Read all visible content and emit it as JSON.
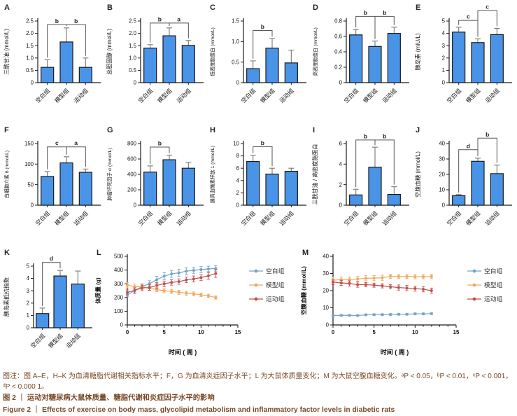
{
  "figure": {
    "caption_note": "图注：图 A–E，H–K 为血清糖脂代谢相关指标水平；F，G 为血清炎症因子水平；L 为大鼠体质量变化；M 为大鼠空腹血糖变化。ᵃP < 0.05，ᵇP < 0.01，ᶜP < 0.001，ᵈP < 0.000 1。",
    "caption_zh": "图 2 ｜ 运动对糖尿病大鼠体质量、糖脂代谢和炎症因子水平的影响",
    "caption_en": "Figure 2 ｜ Effects of exercise on body mass, glycolipid metabolism and inflammatory factor levels in diabetic rats",
    "caption_color": "#7a4a28"
  },
  "colors": {
    "bar_fill": "#4A94E8",
    "bar_stroke": "#1a1a1a",
    "error": "#777777",
    "bracket": "#555555",
    "blank": "#74A4C8",
    "model": "#F0A95F",
    "exercise": "#C0504D"
  },
  "groups": [
    "空白组",
    "模型组",
    "运动组"
  ],
  "chart_data": [
    {
      "panel": "A",
      "type": "bar",
      "ylabel": "三酰甘油 (mmol/L)",
      "ylim": [
        0,
        2.5
      ],
      "yticks": [
        "0",
        "0.5",
        "1.0",
        "1.5",
        "2.0",
        "2.5"
      ],
      "categories": [
        "空白组",
        "模型组",
        "运动组"
      ],
      "values": [
        0.62,
        1.65,
        0.62
      ],
      "errors": [
        0.31,
        0.57,
        0.38
      ],
      "sig": [
        {
          "i": 0,
          "j": 1,
          "label": "b",
          "y": 2.35
        },
        {
          "i": 1,
          "j": 2,
          "label": "b",
          "y": 2.35
        }
      ]
    },
    {
      "panel": "B",
      "type": "bar",
      "ylabel": "总胆固醇 (mmol/L)",
      "ylim": [
        0,
        2.5
      ],
      "yticks": [
        "0",
        "0.5",
        "1.0",
        "1.5",
        "2.0",
        "2.5"
      ],
      "categories": [
        "空白组",
        "模型组",
        "运动组"
      ],
      "values": [
        1.4,
        1.9,
        1.51
      ],
      "errors": [
        0.14,
        0.32,
        0.2
      ],
      "sig": [
        {
          "i": 0,
          "j": 1,
          "label": "b",
          "y": 2.42
        },
        {
          "i": 1,
          "j": 2,
          "label": "a",
          "y": 2.42
        }
      ]
    },
    {
      "panel": "C",
      "type": "bar",
      "ylabel": "低密度脂蛋白 (mmol/L)",
      "ylim": [
        0,
        1.5
      ],
      "yticks": [
        "0",
        "0.5",
        "1.0",
        "1.5"
      ],
      "categories": [
        "空白组",
        "模型组",
        "运动组"
      ],
      "values": [
        0.34,
        0.84,
        0.48
      ],
      "errors": [
        0.19,
        0.23,
        0.31
      ],
      "sig": [
        {
          "i": 0,
          "j": 1,
          "label": "b",
          "y": 1.27
        }
      ]
    },
    {
      "panel": "D",
      "type": "bar",
      "ylabel": "高密度脂蛋白 (mmol/L)",
      "ylim": [
        0,
        0.8
      ],
      "yticks": [
        "0",
        "0.2",
        "0.4",
        "0.6",
        "0.8"
      ],
      "categories": [
        "空白组",
        "模型组",
        "运动组"
      ],
      "values": [
        0.62,
        0.47,
        0.64
      ],
      "errors": [
        0.07,
        0.07,
        0.08
      ],
      "sig": [
        {
          "i": 0,
          "j": 1,
          "label": "b",
          "y": 0.86
        },
        {
          "i": 1,
          "j": 2,
          "label": "b",
          "y": 0.86
        }
      ]
    },
    {
      "panel": "E",
      "type": "bar",
      "ylabel": "胰岛素 (mIU/L)",
      "ylim": [
        0,
        5
      ],
      "yticks": [
        "0",
        "1",
        "2",
        "3",
        "4",
        "5"
      ],
      "categories": [
        "空白组",
        "模型组",
        "运动组"
      ],
      "values": [
        4.1,
        3.25,
        3.9
      ],
      "errors": [
        0.4,
        0.3,
        0.5
      ],
      "sig": [
        {
          "i": 0,
          "j": 1,
          "label": "c",
          "y": 5.05
        },
        {
          "i": 1,
          "j": 2,
          "label": "c",
          "y": 5.85
        }
      ]
    },
    {
      "panel": "F",
      "type": "bar",
      "ylabel": "白细胞介素 6 (mmol/L)",
      "ylim": [
        0,
        150
      ],
      "yticks": [
        "0",
        "50",
        "100",
        "150"
      ],
      "categories": [
        "空白组",
        "模型组",
        "运动组"
      ],
      "values": [
        70,
        103,
        80
      ],
      "errors": [
        12,
        15,
        8
      ],
      "sig": [
        {
          "i": 0,
          "j": 1,
          "label": "c",
          "y": 142
        },
        {
          "i": 1,
          "j": 2,
          "label": "a",
          "y": 142
        }
      ]
    },
    {
      "panel": "G",
      "type": "bar",
      "ylabel": "肿瘤坏死因子 α (mmol/L)",
      "ylim": [
        0,
        800
      ],
      "yticks": [
        "0",
        "200",
        "400",
        "600",
        "800"
      ],
      "categories": [
        "空白组",
        "模型组",
        "运动组"
      ],
      "values": [
        430,
        590,
        480
      ],
      "errors": [
        80,
        60,
        75
      ],
      "sig": [
        {
          "i": 0,
          "j": 1,
          "label": "b",
          "y": 755
        }
      ]
    },
    {
      "panel": "H",
      "type": "bar",
      "ylabel": "胰高血糖素样肽 1 (mmol/L)",
      "ylim": [
        0,
        10
      ],
      "yticks": [
        "0",
        "2",
        "4",
        "6",
        "8",
        "10"
      ],
      "categories": [
        "空白组",
        "模型组",
        "运动组"
      ],
      "values": [
        7.1,
        5.05,
        5.5
      ],
      "errors": [
        1.0,
        0.95,
        0.5
      ],
      "sig": [
        {
          "i": 0,
          "j": 1,
          "label": "b",
          "y": 9.5
        }
      ]
    },
    {
      "panel": "I",
      "type": "bar",
      "ylabel": "三酰甘油 / 高密度脂蛋白",
      "ylim": [
        0,
        6
      ],
      "yticks": [
        "0",
        "2",
        "4",
        "6"
      ],
      "categories": [
        "空白组",
        "模型组",
        "运动组"
      ],
      "values": [
        1.0,
        3.7,
        1.05
      ],
      "errors": [
        0.55,
        1.95,
        0.75
      ],
      "sig": [
        {
          "i": 0,
          "j": 1,
          "label": "b",
          "y": 6.35
        },
        {
          "i": 1,
          "j": 2,
          "label": "b",
          "y": 6.35
        }
      ]
    },
    {
      "panel": "J",
      "type": "bar",
      "ylabel": "空腹血糖 (mmol/L)",
      "ylim": [
        0,
        40
      ],
      "yticks": [
        "0",
        "10",
        "20",
        "30",
        "40"
      ],
      "categories": [
        "空白组",
        "模型组",
        "运动组"
      ],
      "values": [
        6.2,
        28.5,
        20.5
      ],
      "errors": [
        0.7,
        2.0,
        5.5
      ],
      "sig": [
        {
          "i": 0,
          "j": 1,
          "label": "d",
          "y": 36
        },
        {
          "i": 1,
          "j": 2,
          "label": "b",
          "y": 43.5
        }
      ]
    },
    {
      "panel": "K",
      "type": "bar",
      "ylabel": "胰岛素抵抗指数",
      "ylim": [
        0,
        5
      ],
      "yticks": [
        "0",
        "1",
        "2",
        "3",
        "4",
        "5"
      ],
      "categories": [
        "空白组",
        "模型组",
        "运动组"
      ],
      "values": [
        1.15,
        4.2,
        3.55
      ],
      "errors": [
        0.45,
        0.45,
        1.05
      ],
      "sig": [
        {
          "i": 0,
          "j": 1,
          "label": "d",
          "y": 5.3
        }
      ]
    },
    {
      "panel": "L",
      "type": "line",
      "xlabel": "时间 ( 周 )",
      "ylabel": "体质量 (g)",
      "xlim": [
        0,
        15
      ],
      "ylim": [
        0,
        500
      ],
      "xticks": [
        0,
        5,
        10,
        15
      ],
      "yticks": [
        "0",
        "100",
        "200",
        "300",
        "400",
        "500"
      ],
      "x": [
        0,
        1,
        2,
        3,
        4,
        5,
        6,
        7,
        8,
        9,
        10,
        11,
        12
      ],
      "legend": true,
      "series": [
        {
          "name": "空白组",
          "key": "blank",
          "values": [
            220,
            250,
            280,
            300,
            330,
            355,
            372,
            380,
            392,
            398,
            403,
            408,
            412
          ],
          "errors": [
            15,
            20,
            20,
            22,
            25,
            25,
            25,
            25,
            25,
            22,
            22,
            20,
            20
          ]
        },
        {
          "name": "模型组",
          "key": "model",
          "values": [
            290,
            280,
            277,
            268,
            257,
            250,
            244,
            238,
            231,
            226,
            220,
            212,
            200
          ],
          "errors": [
            20,
            18,
            18,
            16,
            15,
            15,
            15,
            15,
            14,
            14,
            13,
            12,
            12
          ]
        },
        {
          "name": "运动组",
          "key": "exercise",
          "values": [
            237,
            252,
            270,
            272,
            288,
            300,
            310,
            316,
            328,
            335,
            345,
            358,
            375
          ],
          "errors": [
            18,
            18,
            20,
            20,
            20,
            20,
            20,
            20,
            20,
            22,
            22,
            25,
            28
          ]
        }
      ]
    },
    {
      "panel": "M",
      "type": "line",
      "xlabel": "时间 ( 周 )",
      "ylabel": "空腹血糖 (mmol/L)",
      "xlim": [
        0,
        15
      ],
      "ylim": [
        0,
        40
      ],
      "xticks": [
        0,
        5,
        10,
        15
      ],
      "yticks": [
        "0",
        "10",
        "20",
        "30",
        "40"
      ],
      "x": [
        0,
        1,
        2,
        3,
        4,
        5,
        6,
        7,
        8,
        9,
        10,
        11,
        12
      ],
      "legend": true,
      "series": [
        {
          "name": "空白组",
          "key": "blank",
          "values": [
            5.5,
            5.6,
            5.6,
            5.5,
            5.9,
            6.0,
            6.0,
            6.1,
            6.2,
            6.2,
            6.5,
            6.5,
            6.6
          ],
          "errors": [
            0.5,
            0.5,
            0.5,
            0.5,
            0.5,
            0.5,
            0.5,
            0.5,
            0.5,
            0.5,
            0.5,
            0.5,
            0.5
          ]
        },
        {
          "name": "模型组",
          "key": "model",
          "values": [
            26,
            26.5,
            26.5,
            26.8,
            27.2,
            27.3,
            27.5,
            28.3,
            28.2,
            28.2,
            28.1,
            28.1,
            28.2
          ],
          "errors": [
            2,
            1.5,
            1.5,
            1.5,
            1.5,
            1.5,
            1.5,
            1.2,
            1.2,
            1.2,
            1.2,
            1.2,
            1.2
          ]
        },
        {
          "name": "运动组",
          "key": "exercise",
          "values": [
            25,
            24.5,
            24.2,
            23.5,
            23.5,
            23.2,
            22.8,
            22.3,
            21.8,
            21.5,
            21.2,
            20.8,
            20
          ],
          "errors": [
            1.5,
            1.5,
            1.5,
            1.5,
            1.2,
            1.2,
            1.2,
            1.2,
            1.5,
            1.5,
            1.5,
            1.5,
            1.5
          ]
        }
      ]
    }
  ]
}
